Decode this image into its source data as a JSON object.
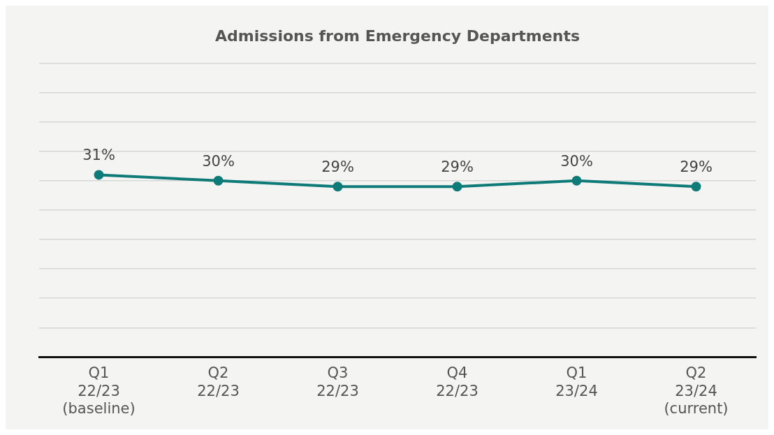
{
  "chart_data": {
    "type": "line",
    "title": "Admissions from Emergency Departments",
    "categories": [
      "Q1\n22/23\n(baseline)",
      "Q2\n22/23",
      "Q3\n22/23",
      "Q4\n22/23",
      "Q1\n23/24",
      "Q2\n23/24\n(current)"
    ],
    "series": [
      {
        "color": "#0f7b79",
        "values": [
          31,
          30,
          29,
          29,
          30,
          29
        ],
        "value_labels": [
          "31%",
          "30%",
          "29%",
          "29%",
          "30%",
          "29%"
        ]
      }
    ],
    "ylim": [
      0,
      50
    ],
    "yticks": [
      {
        "value": 0,
        "label": null
      },
      {
        "value": 5,
        "label": null
      },
      {
        "value": 10,
        "label": null
      },
      {
        "value": 15,
        "label": null
      },
      {
        "value": 20,
        "label": null
      },
      {
        "value": 25,
        "label": null
      },
      {
        "value": 30,
        "label": null
      },
      {
        "value": 35,
        "label": null
      },
      {
        "value": 40,
        "label": null
      },
      {
        "value": 45,
        "label": null
      },
      {
        "value": 50,
        "label": null
      }
    ],
    "grid": "y",
    "legend": false,
    "tick_labels": "x",
    "marker": "circle",
    "line_style": "solid"
  }
}
